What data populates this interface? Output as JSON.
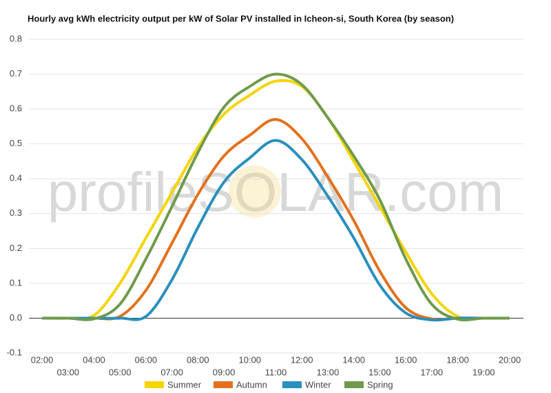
{
  "chart_data": {
    "type": "line",
    "title": "Hourly avg kWh electricity output per kW of Solar PV installed in Icheon-si, South Korea (by season)",
    "watermark": "profileSOLAR.com",
    "categories": [
      "02:00",
      "03:00",
      "04:00",
      "05:00",
      "06:00",
      "07:00",
      "08:00",
      "09:00",
      "10:00",
      "11:00",
      "12:00",
      "13:00",
      "14:00",
      "15:00",
      "16:00",
      "17:00",
      "18:00",
      "19:00",
      "20:00"
    ],
    "series": [
      {
        "name": "Summer",
        "color": "#f5d400",
        "values": [
          0,
          0,
          0.008,
          0.1,
          0.23,
          0.36,
          0.49,
          0.585,
          0.64,
          0.68,
          0.665,
          0.575,
          0.45,
          0.32,
          0.19,
          0.07,
          0.005,
          0,
          0
        ]
      },
      {
        "name": "Autumn",
        "color": "#e2711d",
        "values": [
          0,
          0,
          0,
          0.005,
          0.08,
          0.215,
          0.355,
          0.465,
          0.525,
          0.57,
          0.515,
          0.405,
          0.28,
          0.135,
          0.03,
          -0.002,
          0,
          0,
          0
        ]
      },
      {
        "name": "Winter",
        "color": "#2a8fbd",
        "values": [
          0,
          0,
          0,
          0,
          0.005,
          0.11,
          0.26,
          0.39,
          0.46,
          0.51,
          0.455,
          0.35,
          0.23,
          0.095,
          0.015,
          -0.005,
          0,
          0,
          0
        ]
      },
      {
        "name": "Spring",
        "color": "#6f9a4c",
        "values": [
          0,
          0,
          -0.002,
          0.04,
          0.17,
          0.32,
          0.475,
          0.605,
          0.665,
          0.7,
          0.67,
          0.575,
          0.465,
          0.34,
          0.17,
          0.04,
          -0.003,
          0,
          0
        ]
      }
    ],
    "ylim": [
      -0.1,
      0.8
    ],
    "yticks": [
      -0.1,
      {
        "value": 0,
        "label": "0.0"
      },
      0.1,
      0.2,
      0.3,
      0.4,
      0.5,
      0.6,
      0.7,
      0.8
    ],
    "grid": true,
    "legend": "bottom"
  }
}
